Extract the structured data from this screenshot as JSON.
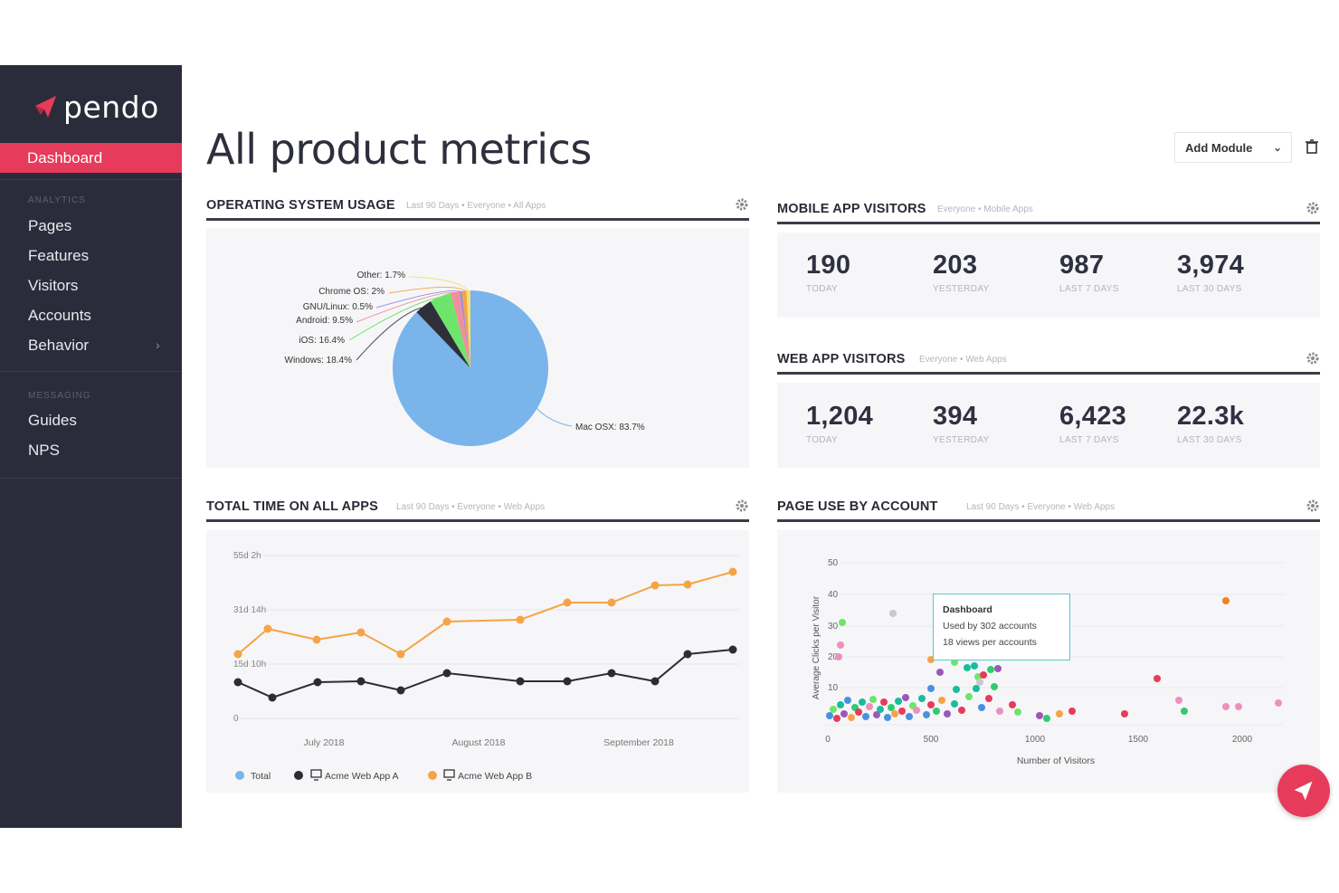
{
  "app": {
    "name": "pendo"
  },
  "sidebar": {
    "active": "Dashboard",
    "sections": [
      {
        "label": "ANALYTICS",
        "items": [
          "Pages",
          "Features",
          "Visitors",
          "Accounts",
          "Behavior"
        ]
      },
      {
        "label": "MESSAGING",
        "items": [
          "Guides",
          "NPS"
        ]
      }
    ]
  },
  "header": {
    "title": "All product metrics",
    "add_module": "Add Module"
  },
  "os_usage": {
    "title": "OPERATING SYSTEM USAGE",
    "subtitle": "Last 90 Days • Everyone • All Apps",
    "labels": [
      "Other: 1.7%",
      "Chrome OS: 2%",
      "GNU/Linux: 0.5%",
      "Android: 9.5%",
      "iOS: 16.4%",
      "Windows: 18.4%",
      "Mac OSX: 83.7%"
    ]
  },
  "mobile_visitors": {
    "title": "MOBILE APP VISITORS",
    "subtitle": "Everyone • Mobile Apps",
    "metrics": [
      {
        "value": "190",
        "label": "TODAY"
      },
      {
        "value": "203",
        "label": "YESTERDAY"
      },
      {
        "value": "987",
        "label": "LAST 7 DAYS"
      },
      {
        "value": "3,974",
        "label": "LAST 30 DAYS"
      }
    ]
  },
  "web_visitors": {
    "title": "WEB APP VISITORS",
    "subtitle": "Everyone • Web Apps",
    "metrics": [
      {
        "value": "1,204",
        "label": "TODAY"
      },
      {
        "value": "394",
        "label": "YESTERDAY"
      },
      {
        "value": "6,423",
        "label": "LAST 7 DAYS"
      },
      {
        "value": "22.3k",
        "label": "LAST 30 DAYS"
      }
    ]
  },
  "total_time": {
    "title": "TOTAL TIME ON ALL APPS",
    "subtitle": "Last 90 Days • Everyone • Web Apps",
    "y_ticks": [
      "55d 2h",
      "31d 14h",
      "15d 10h",
      "0"
    ],
    "x_ticks": [
      "July 2018",
      "August 2018",
      "September 2018"
    ],
    "legend": [
      "Total",
      "Acme Web App A",
      "Acme Web App B"
    ]
  },
  "page_use": {
    "title": "PAGE USE BY ACCOUNT",
    "subtitle": "Last 90 Days • Everyone • Web Apps",
    "y_label": "Average Clicks per Visitor",
    "x_label": "Number of Visitors",
    "y_ticks": [
      "50",
      "40",
      "30",
      "20",
      "10"
    ],
    "x_ticks": [
      "0",
      "500",
      "1000",
      "1500",
      "2000"
    ],
    "tooltip": {
      "title": "Dashboard",
      "line1": "Used by 302 accounts",
      "line2": "18 views per accounts"
    }
  },
  "colors": {
    "accent": "#e73b5b",
    "sidebar": "#2b2c3b",
    "pie_mac": "#79b4ea",
    "line_a": "#2b2c34",
    "line_b": "#f5a445"
  }
}
